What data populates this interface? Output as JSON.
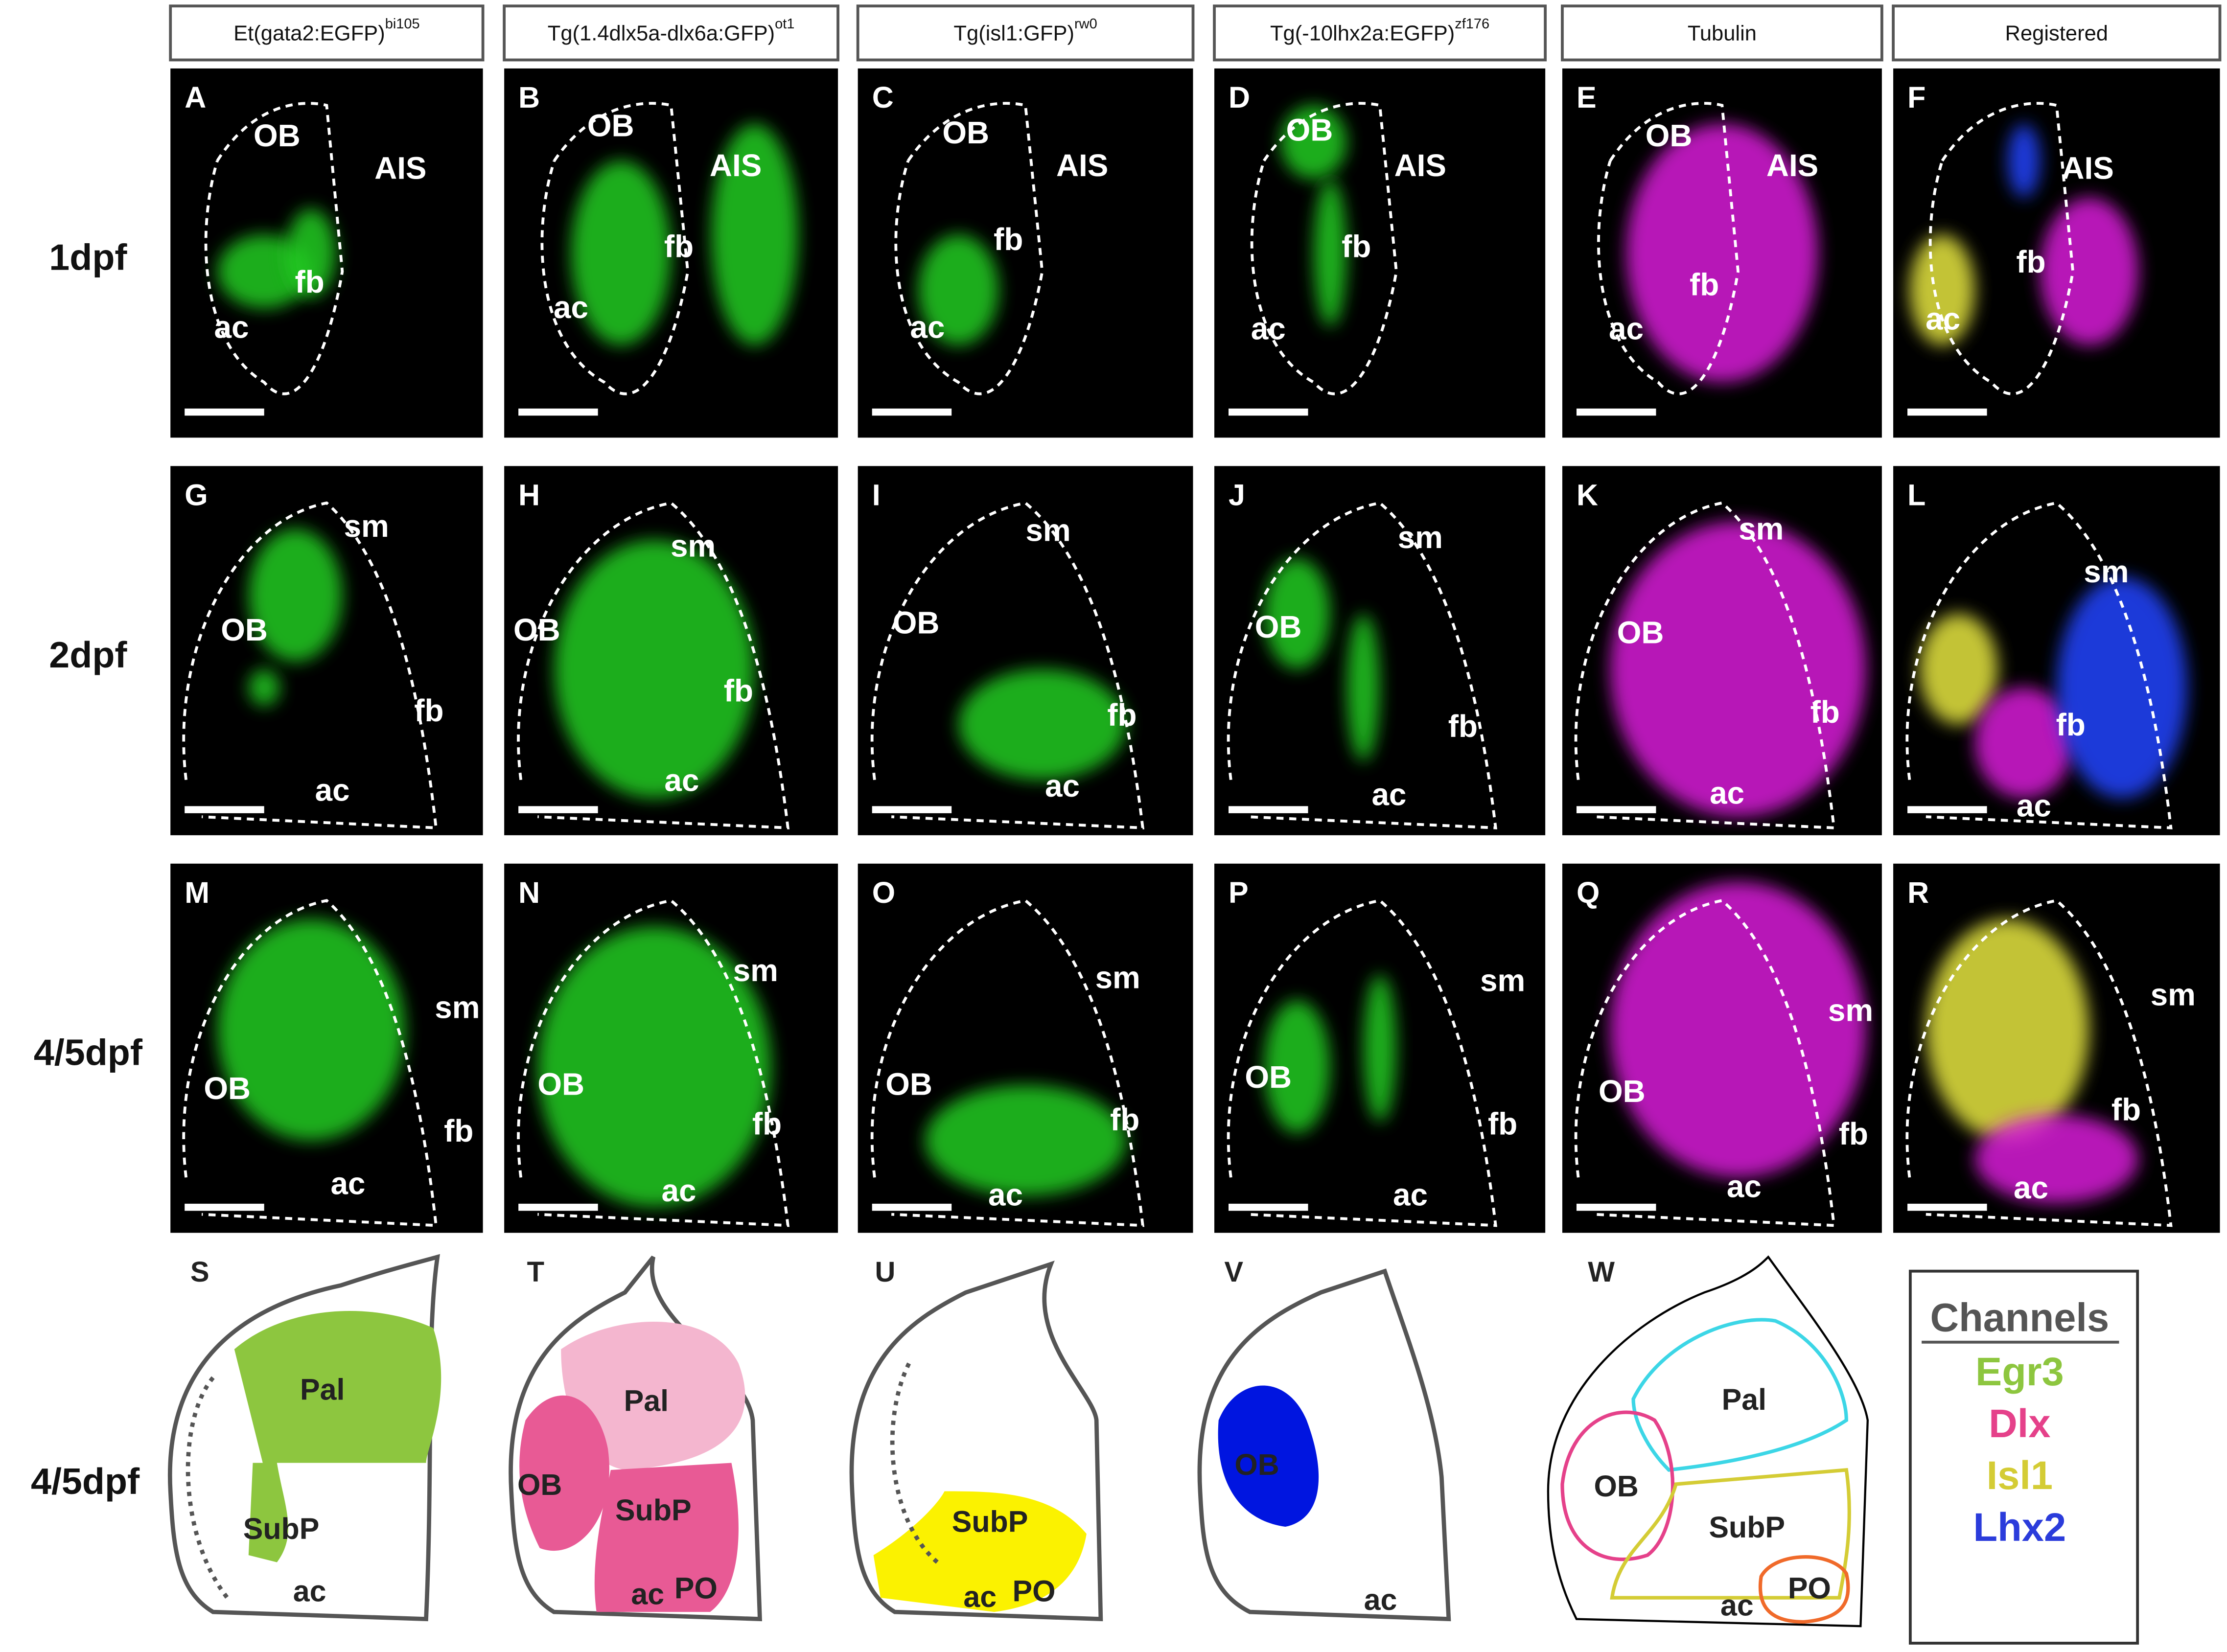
{
  "columns": [
    {
      "title": "Et(gata2:EGFP)",
      "sup": "bi105"
    },
    {
      "title": "Tg(1.4dlx5a-dlx6a:GFP)",
      "sup": "ot1"
    },
    {
      "title": "Tg(isl1:GFP)",
      "sup": "rw0"
    },
    {
      "title": "Tg(-10lhx2a:EGFP)",
      "sup": "zf176"
    },
    {
      "title": "Tubulin"
    },
    {
      "title": "Registered"
    }
  ],
  "rows": [
    "1dpf",
    "2dpf",
    "4/5dpf"
  ],
  "panels": [
    {
      "letter": "A",
      "labels": [
        "OB",
        "AIS",
        "fb",
        "ac"
      ]
    },
    {
      "letter": "B",
      "labels": [
        "OB",
        "AIS",
        "fb",
        "ac"
      ]
    },
    {
      "letter": "C",
      "labels": [
        "OB",
        "AIS",
        "fb",
        "ac"
      ]
    },
    {
      "letter": "D",
      "labels": [
        "OB",
        "AIS",
        "fb",
        "ac"
      ]
    },
    {
      "letter": "E",
      "labels": [
        "OB",
        "AIS",
        "fb",
        "ac"
      ]
    },
    {
      "letter": "F",
      "labels": [
        "AIS",
        "fb",
        "ac"
      ]
    },
    {
      "letter": "G",
      "labels": [
        "sm",
        "OB",
        "fb",
        "ac"
      ]
    },
    {
      "letter": "H",
      "labels": [
        "sm",
        "OB",
        "fb",
        "ac"
      ]
    },
    {
      "letter": "I",
      "labels": [
        "sm",
        "OB",
        "fb",
        "ac"
      ]
    },
    {
      "letter": "J",
      "labels": [
        "sm",
        "OB",
        "fb",
        "ac"
      ]
    },
    {
      "letter": "K",
      "labels": [
        "sm",
        "OB",
        "fb",
        "ac"
      ]
    },
    {
      "letter": "L",
      "labels": [
        "sm",
        "fb",
        "ac"
      ]
    },
    {
      "letter": "M",
      "labels": [
        "sm",
        "OB",
        "fb",
        "ac"
      ]
    },
    {
      "letter": "N",
      "labels": [
        "sm",
        "OB",
        "fb",
        "ac"
      ]
    },
    {
      "letter": "O",
      "labels": [
        "sm",
        "OB",
        "fb",
        "ac"
      ]
    },
    {
      "letter": "P",
      "labels": [
        "sm",
        "OB",
        "fb",
        "ac"
      ]
    },
    {
      "letter": "Q",
      "labels": [
        "sm",
        "OB",
        "fb",
        "ac"
      ]
    },
    {
      "letter": "R",
      "labels": [
        "sm",
        "fb",
        "ac"
      ]
    }
  ],
  "schematic_row": "4/5dpf",
  "schematics": [
    {
      "letter": "S",
      "labels": [
        "Pal",
        "SubP",
        "ac"
      ]
    },
    {
      "letter": "T",
      "labels": [
        "Pal",
        "OB",
        "SubP",
        "ac",
        "PO"
      ]
    },
    {
      "letter": "U",
      "labels": [
        "SubP",
        "ac",
        "PO"
      ]
    },
    {
      "letter": "V",
      "labels": [
        "OB",
        "ac"
      ]
    },
    {
      "letter": "W",
      "labels": [
        "Pal",
        "OB",
        "SubP",
        "ac",
        "PO"
      ]
    }
  ],
  "legend": {
    "title": "Channels",
    "items": [
      {
        "name": "Egr3",
        "color": "#8dc63f"
      },
      {
        "name": "Dlx",
        "color": "#e5418a"
      },
      {
        "name": "Isl1",
        "color": "#d4cc35"
      },
      {
        "name": "Lhx2",
        "color": "#2b3cdb"
      }
    ]
  }
}
